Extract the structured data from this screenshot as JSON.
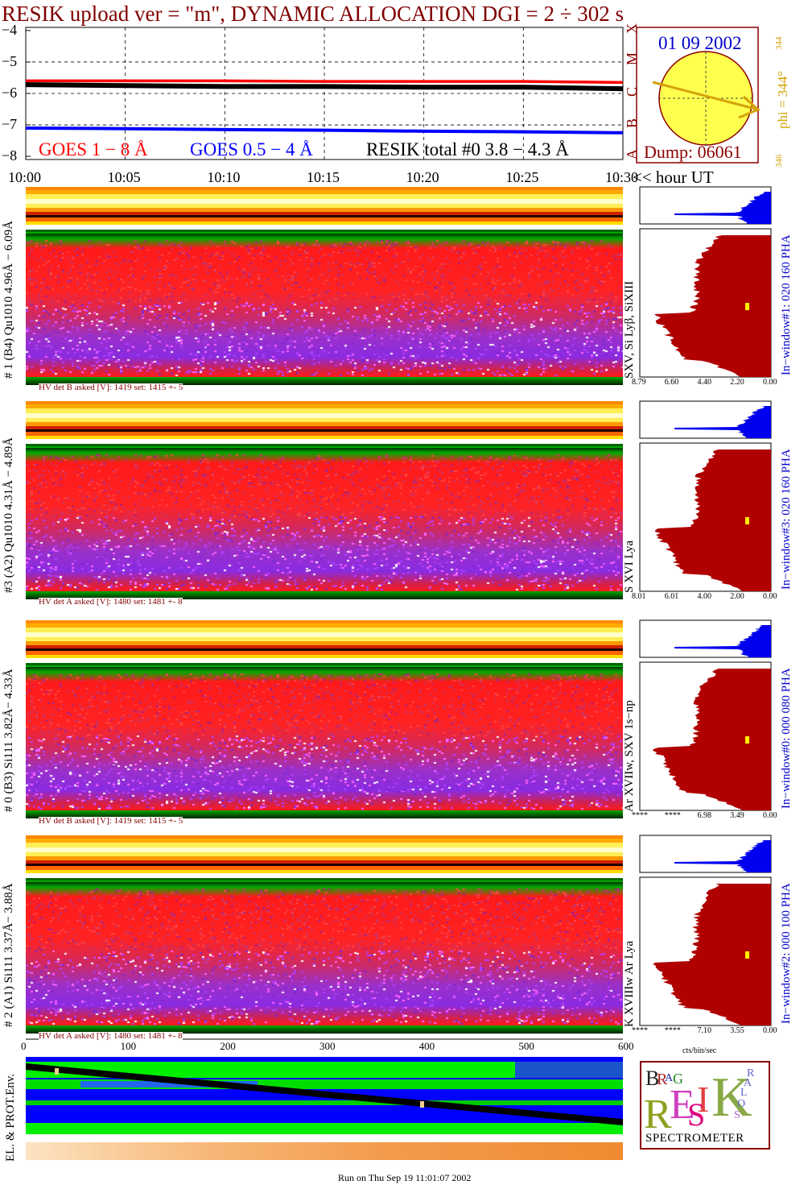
{
  "title": "RESIK upload ver = \"m\", DYNAMIC ALLOCATION  DGI =   2 ÷ 302 s",
  "goes_panel": {
    "y_ticks": [
      "−4",
      "−5",
      "−6",
      "−7",
      "−8"
    ],
    "class_letters": [
      "A",
      "B",
      "C",
      "M",
      "X"
    ],
    "legend": {
      "goes_1_8": "GOES 1 − 8 Å",
      "goes_05_4": "GOES 0.5 − 4 Å",
      "resik_total": "RESIK total #0  3.8 − 4.3 Å"
    },
    "colors": {
      "goes_1_8": "#ff0000",
      "goes_05_4": "#0000ff",
      "resik_total": "#000000"
    }
  },
  "sun_panel": {
    "date": "01 09 2002",
    "dump": "Dump: 06061",
    "phi": "phi = 344°",
    "phi_top": "344",
    "phi_bottom": "346"
  },
  "time_axis": {
    "ticks": [
      "10:00",
      "10:05",
      "10:10",
      "10:15",
      "10:20",
      "10:25",
      "10:30"
    ],
    "unit_label": "<< hour UT"
  },
  "channels": [
    {
      "left_label": "# 1 (B4) Qu1010 4.96Å − 6.09Å",
      "right_label": "SXV, Si Lyβ, SiXIII",
      "window_label": "In−window#1:  020 160 PHA",
      "hv_text": "HV det B asked [V]:  1419 set:  1415  +-    5",
      "pha_ticks": [
        "8.79",
        "6.60",
        "4.40",
        "2.20",
        "0.00"
      ]
    },
    {
      "left_label": "#3 (A2) Qu1010  4.31Å − 4.89Å",
      "right_label": "S XVI Lya",
      "window_label": "In−window#3:  020 160 PHA",
      "hv_text": "HV det A asked [V]:  1480 set:  1481  +-    8",
      "pha_ticks": [
        "8.01",
        "6.01",
        "4.00",
        "2.00",
        "0.00"
      ]
    },
    {
      "left_label": "# 0 (B3) Si111  3.82Å− 4.33Å",
      "right_label": "Ar XVIIw,  SXV 1s−np",
      "window_label": "In−window#0:  000 080 PHA",
      "hv_text": "HV det B asked [V]:  1419 set:  1415  +-    5",
      "pha_ticks": [
        "****",
        "****",
        "6.98",
        "3.49",
        "0.00"
      ]
    },
    {
      "left_label": "# 2 (A1) Si111  3.37Å−  3.88Å",
      "right_label": "K XVIIIw  Ar Lya",
      "window_label": "In−window#2:  000 100 PHA",
      "hv_text": "HV det A asked [V]:  1480 set:  1481  +-    8",
      "pha_ticks": [
        "****",
        "****",
        "7.10",
        "3.55",
        "0.00"
      ]
    }
  ],
  "bin_axis": {
    "ticks": [
      "0",
      "100",
      "200",
      "300",
      "400",
      "500",
      "600"
    ],
    "unit": "cts/bin/sec"
  },
  "env_panel": {
    "label": "EL. & PROT.Env."
  },
  "logo": {
    "letters": [
      "B",
      "R",
      "A",
      "G",
      "R",
      "E",
      "S",
      "I",
      "K",
      "S",
      "O",
      "L",
      "A",
      "R"
    ],
    "caption": "SPECTROMETER"
  },
  "footer": "Run on Thu Sep 19 11:01:07 2002",
  "chart_data": [
    {
      "type": "line",
      "title": "RESIK upload ver = \"m\", DYNAMIC ALLOCATION  DGI =   2 ÷ 302 s",
      "xlabel": "<< hour UT",
      "ylabel": "",
      "x": [
        "10:00",
        "10:05",
        "10:10",
        "10:15",
        "10:20",
        "10:25",
        "10:30"
      ],
      "ylim": [
        -8.1,
        -3.9
      ],
      "grid": true,
      "series": [
        {
          "name": "GOES 1 − 8 Å",
          "values": [
            -5.6,
            -5.6,
            -5.6,
            -5.62,
            -5.62,
            -5.62,
            -5.65
          ]
        },
        {
          "name": "GOES 0.5 − 4 Å",
          "values": [
            -7.1,
            -7.12,
            -7.15,
            -7.17,
            -7.2,
            -7.22,
            -7.25
          ]
        },
        {
          "name": "RESIK total #0  3.8 − 4.3 Å",
          "values": [
            -5.72,
            -5.75,
            -5.78,
            -5.78,
            -5.8,
            -5.8,
            -5.85
          ]
        }
      ]
    }
  ]
}
